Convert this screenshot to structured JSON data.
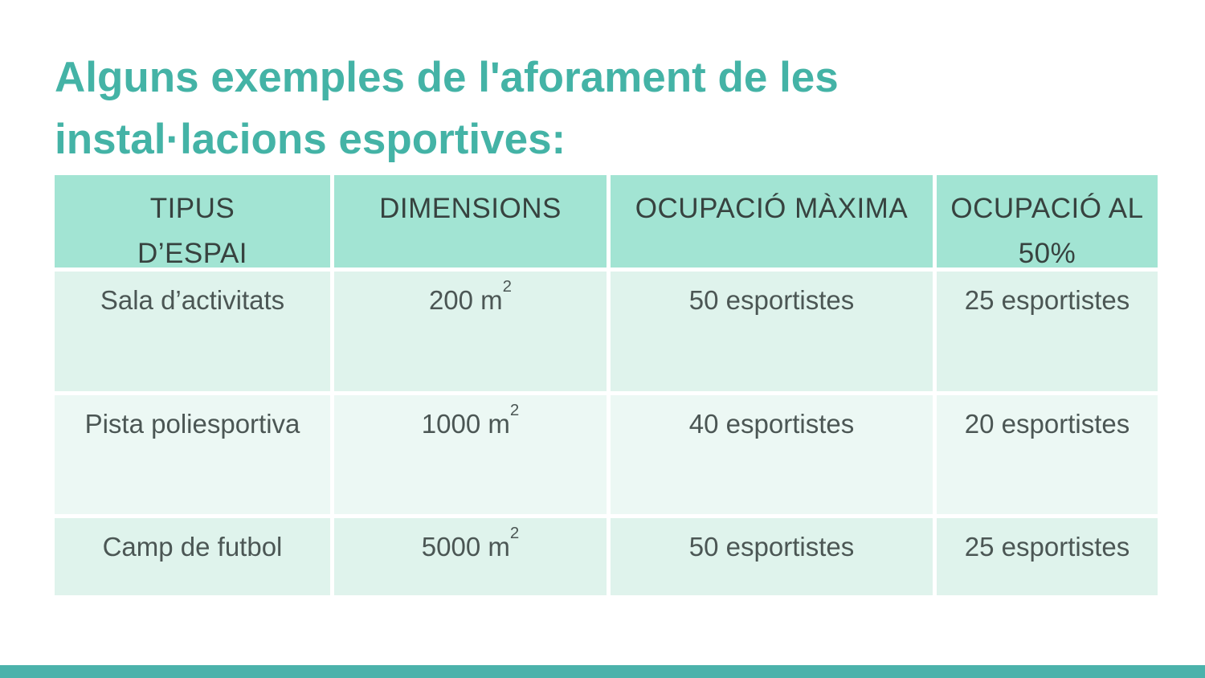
{
  "slide": {
    "title_line1": "Alguns exemples de l'aforament de les",
    "title_line2": "instal·lacions esportives:"
  },
  "table": {
    "headers": [
      "TIPUS D’ESPAI",
      "DIMENSIONS",
      "OCUPACIÓ MÀXIMA",
      "OCUPACIÓ AL 50%"
    ],
    "rows": [
      {
        "space": "Sala d’activitats",
        "dimension_base": "200 m",
        "dimension_sup": "2",
        "occupancy_max": "50 esportistes",
        "occupancy_half": "25 esportistes"
      },
      {
        "space": "Pista poliesportiva",
        "dimension_base": "1000 m",
        "dimension_sup": "2",
        "occupancy_max": "40 esportistes",
        "occupancy_half": "20 esportistes"
      },
      {
        "space": "Camp de futbol",
        "dimension_base": "5000 m",
        "dimension_sup": "2",
        "occupancy_max": "50 esportistes",
        "occupancy_half": "25 esportistes"
      }
    ]
  },
  "colors": {
    "accent_teal": "#44b3a6",
    "header_bg": "#a2e4d3",
    "row_bg": "#dff3ec",
    "row_bg_alt": "#ecf8f4",
    "footer_bar": "#4bb2ab",
    "header_text": "#37423f",
    "cell_text": "#4b5654"
  }
}
